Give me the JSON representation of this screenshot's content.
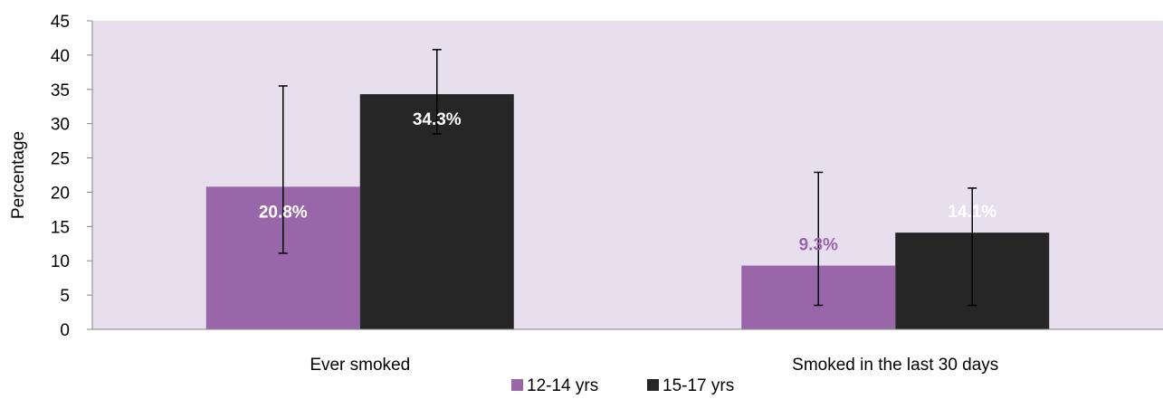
{
  "chart_data": {
    "type": "bar",
    "categories": [
      "Ever smoked",
      "Smoked in the last 30 days"
    ],
    "series": [
      {
        "name": "12-14 yrs",
        "values": [
          20.8,
          9.3
        ],
        "labels": [
          "20.8%",
          "9.3%"
        ],
        "error_low": [
          11.1,
          3.5
        ],
        "error_high": [
          35.5,
          22.9
        ],
        "color": "#9966aa",
        "label_color": [
          "#ffffff",
          "#9966aa"
        ]
      },
      {
        "name": "15-17 yrs",
        "values": [
          34.3,
          14.1
        ],
        "labels": [
          "34.3%",
          "14.1%"
        ],
        "error_low": [
          28.5,
          3.5
        ],
        "error_high": [
          40.8,
          20.6
        ],
        "color": "#262626",
        "label_color": [
          "#ffffff",
          "#ffffff"
        ]
      }
    ],
    "title": "",
    "xlabel": "",
    "ylabel": "Percentage",
    "ylim": [
      0,
      45
    ],
    "yticks": [
      0,
      5,
      10,
      15,
      20,
      25,
      30,
      35,
      40,
      45
    ],
    "plot_background": "#e7dfee",
    "grid": false,
    "legend_position": "bottom"
  }
}
